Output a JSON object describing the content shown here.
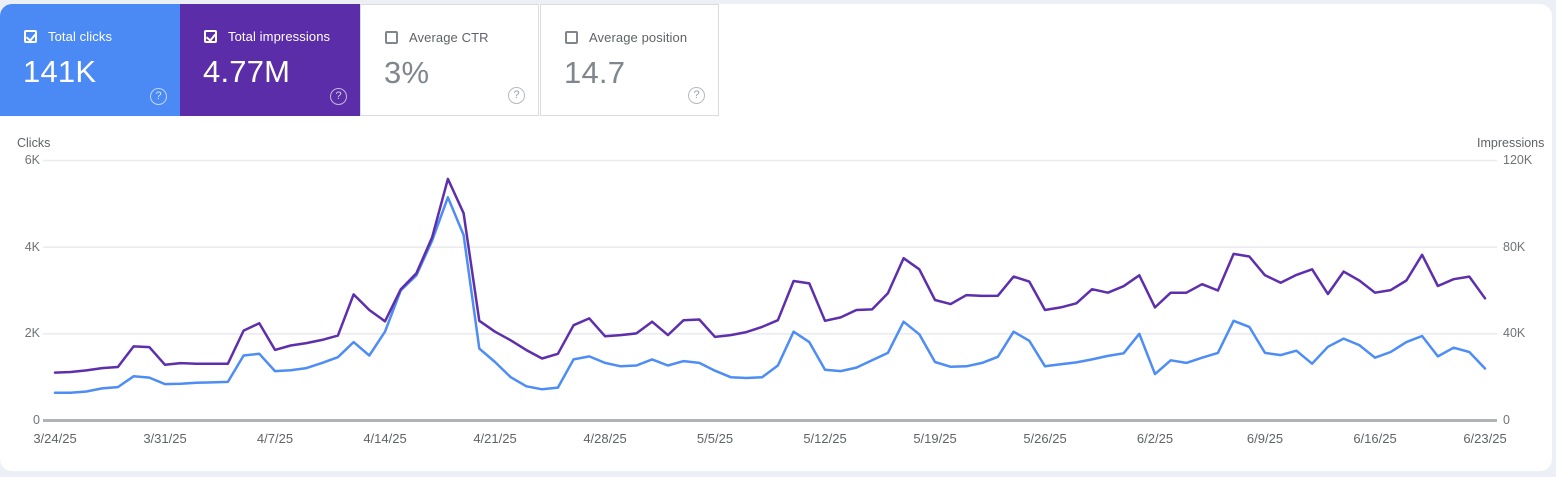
{
  "icons": {
    "help": "?"
  },
  "metric_cards": [
    {
      "label": "Total clicks",
      "value": "141K",
      "checked": true,
      "bg": "#4B8AF4",
      "text": "#ffffff"
    },
    {
      "label": "Total impressions",
      "value": "4.77M",
      "checked": true,
      "bg": "#5C2DA8",
      "text": "#ffffff"
    },
    {
      "label": "Average CTR",
      "value": "3%",
      "checked": false,
      "bg": "#ffffff",
      "text": "#80868b"
    },
    {
      "label": "Average position",
      "value": "14.7",
      "checked": false,
      "bg": "#ffffff",
      "text": "#80868b"
    }
  ],
  "chart": {
    "left_axis_title": "Clicks",
    "right_axis_title": "Impressions",
    "left_ticks": [
      "6K",
      "4K",
      "2K",
      "0"
    ],
    "right_ticks": [
      "120K",
      "80K",
      "40K",
      "0"
    ],
    "grid_color": "#e9eaee",
    "zero_line_color": "#b0b3b8"
  },
  "chart_data": {
    "type": "line",
    "title": "Search performance over time",
    "x": [
      "3/24/25",
      "3/25/25",
      "3/26/25",
      "3/27/25",
      "3/28/25",
      "3/29/25",
      "3/30/25",
      "3/31/25",
      "4/1/25",
      "4/2/25",
      "4/3/25",
      "4/4/25",
      "4/5/25",
      "4/6/25",
      "4/7/25",
      "4/8/25",
      "4/9/25",
      "4/10/25",
      "4/11/25",
      "4/12/25",
      "4/13/25",
      "4/14/25",
      "4/15/25",
      "4/16/25",
      "4/17/25",
      "4/18/25",
      "4/19/25",
      "4/20/25",
      "4/21/25",
      "4/22/25",
      "4/23/25",
      "4/24/25",
      "4/25/25",
      "4/26/25",
      "4/27/25",
      "4/28/25",
      "4/29/25",
      "4/30/25",
      "5/1/25",
      "5/2/25",
      "5/3/25",
      "5/4/25",
      "5/5/25",
      "5/6/25",
      "5/7/25",
      "5/8/25",
      "5/9/25",
      "5/10/25",
      "5/11/25",
      "5/12/25",
      "5/13/25",
      "5/14/25",
      "5/15/25",
      "5/16/25",
      "5/17/25",
      "5/18/25",
      "5/19/25",
      "5/20/25",
      "5/21/25",
      "5/22/25",
      "5/23/25",
      "5/24/25",
      "5/25/25",
      "5/26/25",
      "5/27/25",
      "5/28/25",
      "5/29/25",
      "5/30/25",
      "5/31/25",
      "6/1/25",
      "6/2/25",
      "6/3/25",
      "6/4/25",
      "6/5/25",
      "6/6/25",
      "6/7/25",
      "6/8/25",
      "6/9/25",
      "6/10/25",
      "6/11/25",
      "6/12/25",
      "6/13/25",
      "6/14/25",
      "6/15/25",
      "6/16/25",
      "6/17/25",
      "6/18/25",
      "6/19/25",
      "6/20/25",
      "6/21/25",
      "6/22/25",
      "6/23/25"
    ],
    "x_tick_labels": [
      "3/24/25",
      "3/31/25",
      "4/7/25",
      "4/14/25",
      "4/21/25",
      "4/28/25",
      "5/5/25",
      "5/12/25",
      "5/19/25",
      "5/26/25",
      "6/2/25",
      "6/9/25",
      "6/16/25",
      "6/23/25"
    ],
    "x_tick_indices": [
      0,
      7,
      14,
      21,
      28,
      35,
      42,
      49,
      56,
      63,
      70,
      77,
      84,
      91
    ],
    "series": [
      {
        "name": "Clicks",
        "axis": "left",
        "color": "#4D8DF5",
        "values": [
          640,
          640,
          670,
          740,
          770,
          1020,
          990,
          840,
          850,
          870,
          880,
          890,
          1500,
          1540,
          1140,
          1160,
          1210,
          1330,
          1460,
          1810,
          1500,
          2050,
          3000,
          3350,
          4150,
          5150,
          4280,
          1660,
          1350,
          1000,
          790,
          720,
          760,
          1410,
          1480,
          1330,
          1250,
          1270,
          1410,
          1270,
          1370,
          1330,
          1150,
          1000,
          980,
          1000,
          1270,
          2050,
          1810,
          1170,
          1140,
          1220,
          1390,
          1560,
          2280,
          1990,
          1350,
          1240,
          1250,
          1330,
          1470,
          2050,
          1840,
          1250,
          1300,
          1340,
          1410,
          1490,
          1550,
          2000,
          1070,
          1390,
          1330,
          1450,
          1560,
          2300,
          2160,
          1560,
          1510,
          1610,
          1310,
          1700,
          1890,
          1740,
          1450,
          1580,
          1810,
          1950,
          1480,
          1680,
          1580,
          1200
        ]
      },
      {
        "name": "Impressions",
        "axis": "right",
        "color": "#5E2FAC",
        "values": [
          22100,
          22400,
          23100,
          24200,
          24700,
          34200,
          33900,
          25700,
          26500,
          26200,
          26200,
          26200,
          41500,
          44900,
          32600,
          34600,
          35700,
          37200,
          39200,
          58200,
          51000,
          45800,
          60500,
          68000,
          84500,
          111500,
          95700,
          46000,
          41000,
          37000,
          32500,
          28600,
          30800,
          44000,
          47100,
          38900,
          39400,
          40200,
          45600,
          39400,
          46300,
          46600,
          38600,
          39400,
          40800,
          43200,
          46300,
          64400,
          63300,
          46000,
          47600,
          51000,
          51300,
          58700,
          74900,
          69800,
          55600,
          53700,
          57900,
          57500,
          57600,
          66400,
          64100,
          51000,
          52200,
          54100,
          60600,
          59000,
          62000,
          67000,
          52200,
          59000,
          59000,
          62900,
          60000,
          76900,
          75700,
          67000,
          63600,
          67200,
          69800,
          58400,
          68700,
          64600,
          59000,
          60200,
          64600,
          76500,
          62100,
          65200,
          66400,
          56400
        ]
      }
    ],
    "left_ylim": [
      0,
      6000
    ],
    "right_ylim": [
      0,
      120000
    ],
    "grid": "horizontal",
    "legend": "none"
  }
}
